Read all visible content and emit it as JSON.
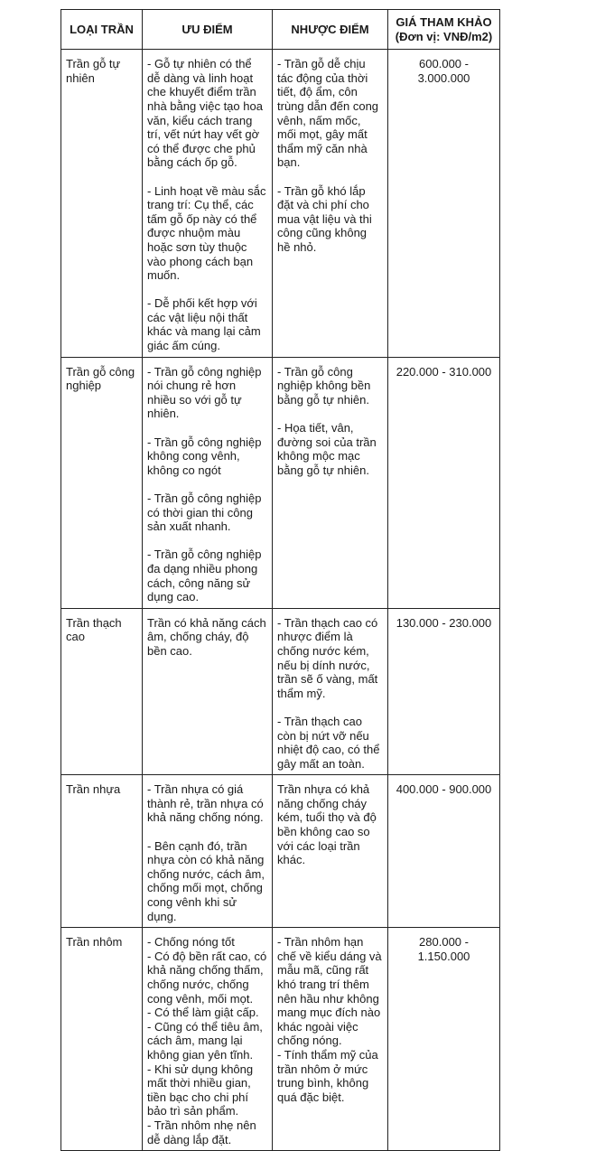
{
  "table": {
    "headers": [
      "LOẠI TRẦN",
      "ƯU ĐIỂM",
      "NHƯỢC ĐIỂM",
      "GIÁ THAM KHẢO",
      "(Đơn vị: VNĐ/m2)"
    ],
    "rows": [
      {
        "type": "Trần gỗ tự nhiên",
        "pros": [
          "- Gỗ tự nhiên có thể dễ dàng và linh hoạt che khuyết điểm trần nhà bằng việc tạo hoa văn, kiểu cách trang trí, vết nứt hay vết gờ có thể được che phủ bằng cách ốp gỗ.",
          "- Linh hoạt về màu sắc trang trí: Cụ thể, các tấm gỗ ốp này có thể được nhuộm màu hoặc sơn tùy thuộc vào phong cách bạn muốn.",
          "- Dễ phối kết hợp với các vật liệu nội thất khác và mang lại cảm giác ấm cúng."
        ],
        "cons": [
          "- Trần gỗ dễ chịu tác động của thời tiết, độ ẩm, côn trùng dẫn đến cong vênh, nấm mốc, mối mọt, gây mất thẩm mỹ căn nhà bạn.",
          "- Trần gỗ khó lắp đặt và chi phí cho mua vật liệu và thi công cũng không hề nhỏ."
        ],
        "price": "600.000 - 3.000.000"
      },
      {
        "type": "Trần gỗ công nghiệp",
        "pros": [
          "- Trần gỗ công nghiệp nói chung rẻ hơn nhiều so với gỗ tự nhiên.",
          "-  Trần gỗ công nghiệp không cong vênh, không co ngót",
          "- Trần gỗ công nghiệp có thời gian thi công sản xuất nhanh.",
          "- Trần gỗ công nghiệp đa dạng nhiều phong cách, công năng sử dụng cao."
        ],
        "cons": [
          "- Trần gỗ công nghiệp không bền bằng gỗ tự nhiên.",
          "- Họa tiết, vân, đường soi của trần không mộc mạc bằng gỗ tự nhiên."
        ],
        "price": "220.000 - 310.000"
      },
      {
        "type": "Trần thạch cao",
        "pros": [
          "Trần có khả năng cách âm, chống cháy, độ bền cao."
        ],
        "cons": [
          "- Trần thạch cao có nhược điểm là chống nước kém, nếu bị dính nước, trần sẽ ố vàng, mất thẩm mỹ.",
          "- Trần thạch cao còn bị nứt vỡ nếu nhiệt độ cao, có thể gây mất an toàn."
        ],
        "price": "130.000 -  230.000"
      },
      {
        "type": "Trần nhựa",
        "pros": [
          "- Trần nhựa có giá thành rẻ, trần nhựa có khả năng chống nóng.",
          "- Bên cạnh đó, trần nhựa còn có khả năng chống nước, cách âm, chống mối mọt, chống cong vênh khi sử dụng."
        ],
        "cons": [
          "Trần nhựa có khả năng chống cháy kém, tuổi thọ và độ bền không cao so với các loại trần khác."
        ],
        "price": "400.000 - 900.000"
      },
      {
        "type": "Trần nhôm",
        "tight": true,
        "pros": [
          "- Chống nóng tốt",
          "- Có độ bền rất cao, có khả năng chống thấm, chống nước, chống cong vênh, mối mọt.",
          "- Có thể làm giật cấp.",
          "- Cũng có thể tiêu âm, cách âm, mang lại không gian yên tĩnh.",
          "- Khi sử dụng không mất thời nhiều gian, tiền bạc cho chi phí bảo trì sản phẩm.",
          "- Trần nhôm nhẹ nên dễ dàng lắp đặt."
        ],
        "cons": [
          "- Trần nhôm hạn chế về kiểu dáng và mẫu mã, cũng rất khó trang trí thêm nên hầu như không mang mục đích nào khác ngoài việc chống nóng.",
          "- Tính thẩm mỹ của trần nhôm ở mức trung bình, không quá đặc biệt."
        ],
        "price": "280.000 - 1.150.000"
      }
    ]
  }
}
